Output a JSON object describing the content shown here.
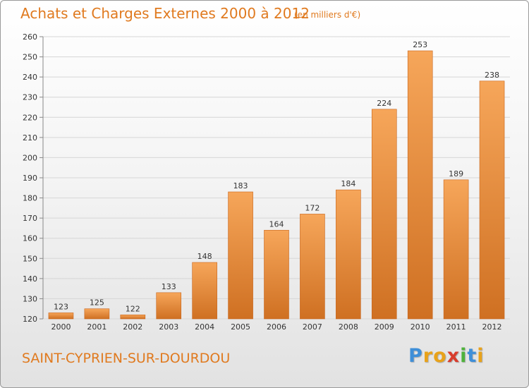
{
  "header": {
    "title": "Achats et Charges Externes 2000 à 2012",
    "subtitle": "(en milliers d'€)"
  },
  "footer": {
    "town": "SAINT-CYPRIEN-SUR-DOURDOU",
    "logo_letters": [
      "P",
      "r",
      "o",
      "x",
      "i",
      "t",
      "i"
    ],
    "logo_colors": [
      "#3f8fd8",
      "#e8a21a",
      "#e8a21a",
      "#d83c2c",
      "#4fb23c",
      "#3f8fd8",
      "#e8a21a"
    ]
  },
  "colors": {
    "bar_light": "#f6a65a",
    "bar_dark": "#cf7022",
    "bar_edge": "#c8651c",
    "grid": "#d6d6d6",
    "accent": "#e07a1f"
  },
  "chart_data": {
    "type": "bar",
    "title": "Achats et Charges Externes 2000 à 2012",
    "subtitle": "(en milliers d'€)",
    "categories": [
      "2000",
      "2001",
      "2002",
      "2003",
      "2004",
      "2005",
      "2006",
      "2007",
      "2008",
      "2009",
      "2010",
      "2011",
      "2012"
    ],
    "values": [
      123,
      125,
      122,
      133,
      148,
      183,
      164,
      172,
      184,
      224,
      253,
      189,
      238
    ],
    "ylim": [
      120,
      260
    ],
    "yticks": [
      120,
      130,
      140,
      150,
      160,
      170,
      180,
      190,
      200,
      210,
      220,
      230,
      240,
      250,
      260
    ],
    "grid": true,
    "xlabel": "",
    "ylabel": ""
  }
}
